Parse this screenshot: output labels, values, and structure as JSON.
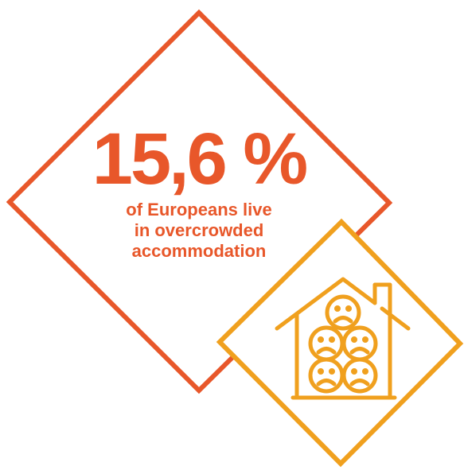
{
  "colors": {
    "accent_red": "#E8572A",
    "accent_orange": "#F0A01E",
    "background": "#FFFFFF"
  },
  "stat": {
    "value": "15,6 %",
    "caption_line1": "of Europeans live",
    "caption_line2": "in overcrowded",
    "caption_line3": "accommodation"
  },
  "icon": {
    "name": "house-with-sad-faces-icon"
  }
}
